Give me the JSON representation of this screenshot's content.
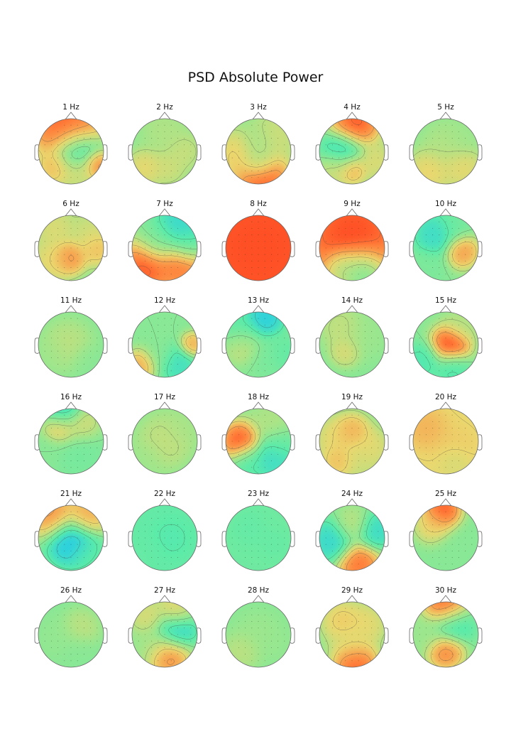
{
  "chart_data": {
    "type": "heatmap",
    "title": "PSD Absolute Power",
    "subtype": "topographic-scalp-maps",
    "colormap": "rainbow",
    "grid": false,
    "rows": 6,
    "cols": 5,
    "maps": [
      {
        "label": "1 Hz",
        "hotspots": [
          [
            -0.3,
            -0.7,
            0.95,
            0.5
          ],
          [
            0.2,
            -0.8,
            0.9,
            0.45
          ],
          [
            0.2,
            -0.1,
            0.15,
            0.4
          ],
          [
            0.8,
            0.4,
            0.9,
            0.25
          ],
          [
            -0.5,
            0.5,
            0.75,
            0.3
          ],
          [
            0.2,
            0.6,
            0.65,
            0.3
          ]
        ]
      },
      {
        "label": "2 Hz",
        "hotspots": [
          [
            -0.6,
            0.5,
            0.68,
            0.3
          ],
          [
            0.1,
            0.5,
            0.62,
            0.3
          ],
          [
            0.0,
            -0.6,
            0.55,
            0.4
          ],
          [
            0.6,
            0.0,
            0.6,
            0.3
          ]
        ]
      },
      {
        "label": "3 Hz",
        "hotspots": [
          [
            0.1,
            0.8,
            0.97,
            0.45
          ],
          [
            -0.7,
            0.1,
            0.7,
            0.4
          ],
          [
            0.5,
            -0.5,
            0.62,
            0.4
          ],
          [
            0.0,
            0.3,
            0.42,
            0.3
          ],
          [
            0.0,
            -0.3,
            0.5,
            0.3
          ]
        ]
      },
      {
        "label": "4 Hz",
        "hotspots": [
          [
            0.1,
            -0.85,
            0.97,
            0.4
          ],
          [
            -0.3,
            0.0,
            0.2,
            0.35
          ],
          [
            0.0,
            0.55,
            0.8,
            0.25
          ],
          [
            -0.5,
            0.5,
            0.65,
            0.3
          ],
          [
            0.7,
            0.3,
            0.65,
            0.3
          ]
        ]
      },
      {
        "label": "5 Hz",
        "hotspots": [
          [
            -0.5,
            0.6,
            0.7,
            0.35
          ],
          [
            0.5,
            0.5,
            0.68,
            0.35
          ],
          [
            0.0,
            -0.2,
            0.55,
            0.4
          ],
          [
            0.5,
            -0.4,
            0.5,
            0.3
          ]
        ]
      },
      {
        "label": "6 Hz",
        "hotspots": [
          [
            -0.05,
            0.3,
            0.85,
            0.28
          ],
          [
            0.8,
            0.0,
            0.75,
            0.3
          ],
          [
            -0.5,
            -0.6,
            0.65,
            0.35
          ],
          [
            0.6,
            -0.5,
            0.62,
            0.35
          ],
          [
            -0.6,
            0.4,
            0.68,
            0.35
          ]
        ]
      },
      {
        "label": "7 Hz",
        "hotspots": [
          [
            -0.6,
            0.6,
            0.97,
            0.45
          ],
          [
            0.5,
            0.6,
            0.9,
            0.4
          ],
          [
            0.5,
            -0.7,
            0.2,
            0.4
          ],
          [
            -0.2,
            -0.2,
            0.4,
            0.35
          ],
          [
            0.7,
            -0.1,
            0.35,
            0.3
          ]
        ]
      },
      {
        "label": "8 Hz",
        "hotspots": [
          [
            0.0,
            0.0,
            1.0,
            3.0
          ]
        ]
      },
      {
        "label": "9 Hz",
        "hotspots": [
          [
            0.0,
            -0.4,
            1.0,
            1.0
          ],
          [
            0.3,
            0.75,
            0.25,
            0.4
          ],
          [
            -0.3,
            0.6,
            0.45,
            0.3
          ]
        ]
      },
      {
        "label": "10 Hz",
        "hotspots": [
          [
            -0.3,
            -0.4,
            0.22,
            0.35
          ],
          [
            0.5,
            0.1,
            0.82,
            0.28
          ],
          [
            -0.5,
            0.6,
            0.42,
            0.3
          ],
          [
            0.3,
            -0.7,
            0.4,
            0.3
          ]
        ]
      },
      {
        "label": "11 Hz",
        "hotspots": [
          [
            -0.1,
            0.0,
            0.58,
            0.4
          ],
          [
            0.5,
            0.5,
            0.45,
            0.3
          ],
          [
            -0.6,
            0.3,
            0.5,
            0.3
          ]
        ]
      },
      {
        "label": "12 Hz",
        "hotspots": [
          [
            -0.7,
            0.6,
            0.8,
            0.25
          ],
          [
            0.4,
            0.6,
            0.25,
            0.3
          ],
          [
            0.85,
            0.0,
            0.78,
            0.2
          ],
          [
            -0.2,
            0.3,
            0.45,
            0.3
          ]
        ]
      },
      {
        "label": "13 Hz",
        "hotspots": [
          [
            0.2,
            -0.8,
            0.15,
            0.3
          ],
          [
            -0.5,
            -0.3,
            0.3,
            0.35
          ],
          [
            -0.5,
            0.0,
            0.68,
            0.3
          ],
          [
            0.3,
            0.4,
            0.42,
            0.35
          ],
          [
            0.8,
            0.3,
            0.35,
            0.3
          ]
        ]
      },
      {
        "label": "14 Hz",
        "hotspots": [
          [
            -0.2,
            0.2,
            0.65,
            0.25
          ],
          [
            0.4,
            -0.3,
            0.5,
            0.4
          ],
          [
            -0.3,
            -0.5,
            0.6,
            0.35
          ]
        ]
      },
      {
        "label": "15 Hz",
        "hotspots": [
          [
            0.15,
            0.0,
            1.0,
            0.32
          ],
          [
            -0.7,
            0.5,
            0.3,
            0.3
          ],
          [
            0.2,
            0.7,
            0.3,
            0.3
          ],
          [
            0.5,
            -0.6,
            0.55,
            0.3
          ]
        ]
      },
      {
        "label": "16 Hz",
        "hotspots": [
          [
            -0.2,
            -0.85,
            0.2,
            0.3
          ],
          [
            -0.3,
            -0.4,
            0.75,
            0.28
          ],
          [
            0.3,
            -0.5,
            0.65,
            0.3
          ],
          [
            0.2,
            0.3,
            0.4,
            0.4
          ],
          [
            -0.7,
            0.4,
            0.45,
            0.3
          ]
        ]
      },
      {
        "label": "17 Hz",
        "hotspots": [
          [
            0.0,
            0.0,
            0.6,
            0.45
          ],
          [
            -0.5,
            0.5,
            0.5,
            0.3
          ],
          [
            0.5,
            -0.4,
            0.52,
            0.3
          ]
        ]
      },
      {
        "label": "18 Hz",
        "hotspots": [
          [
            -0.55,
            0.0,
            0.97,
            0.32
          ],
          [
            0.5,
            0.5,
            0.22,
            0.35
          ],
          [
            -0.3,
            0.6,
            0.32,
            0.3
          ],
          [
            0.4,
            -0.6,
            0.55,
            0.35
          ],
          [
            0.7,
            0.1,
            0.4,
            0.3
          ]
        ]
      },
      {
        "label": "19 Hz",
        "hotspots": [
          [
            0.0,
            -0.3,
            0.78,
            0.3
          ],
          [
            -0.5,
            -0.1,
            0.68,
            0.35
          ],
          [
            0.5,
            0.2,
            0.68,
            0.35
          ],
          [
            -0.4,
            0.6,
            0.75,
            0.3
          ],
          [
            0.3,
            0.6,
            0.6,
            0.35
          ]
        ]
      },
      {
        "label": "20 Hz",
        "hotspots": [
          [
            0.0,
            0.0,
            0.7,
            1.5
          ],
          [
            -0.6,
            -0.4,
            0.8,
            0.4
          ],
          [
            0.4,
            0.2,
            0.7,
            0.4
          ],
          [
            0.3,
            0.6,
            0.55,
            0.3
          ]
        ]
      },
      {
        "label": "21 Hz",
        "hotspots": [
          [
            -0.6,
            -0.7,
            0.85,
            0.4
          ],
          [
            0.5,
            -0.7,
            0.8,
            0.35
          ],
          [
            0.0,
            0.1,
            0.1,
            0.4
          ],
          [
            0.5,
            0.5,
            0.35,
            0.3
          ]
        ]
      },
      {
        "label": "22 Hz",
        "hotspots": [
          [
            0.0,
            0.0,
            0.35,
            1.5
          ],
          [
            0.2,
            0.0,
            0.3,
            0.35
          ],
          [
            -0.5,
            0.4,
            0.38,
            0.3
          ]
        ]
      },
      {
        "label": "23 Hz",
        "hotspots": [
          [
            0.0,
            0.0,
            0.38,
            1.5
          ],
          [
            -0.3,
            -0.3,
            0.35,
            0.35
          ],
          [
            0.5,
            0.2,
            0.36,
            0.3
          ]
        ]
      },
      {
        "label": "24 Hz",
        "hotspots": [
          [
            0.2,
            0.8,
            0.92,
            0.35
          ],
          [
            -0.6,
            0.1,
            0.2,
            0.35
          ],
          [
            0.7,
            -0.2,
            0.22,
            0.3
          ],
          [
            0.0,
            -0.4,
            0.58,
            0.3
          ]
        ]
      },
      {
        "label": "25 Hz",
        "hotspots": [
          [
            -0.1,
            -0.85,
            0.97,
            0.3
          ],
          [
            -0.4,
            -0.4,
            0.7,
            0.3
          ],
          [
            0.5,
            0.5,
            0.45,
            0.4
          ]
        ]
      },
      {
        "label": "26 Hz",
        "hotspots": [
          [
            0.3,
            -0.2,
            0.58,
            0.3
          ],
          [
            -0.4,
            0.1,
            0.48,
            0.35
          ],
          [
            0.2,
            0.5,
            0.45,
            0.3
          ]
        ]
      },
      {
        "label": "27 Hz",
        "hotspots": [
          [
            0.1,
            0.6,
            0.9,
            0.35
          ],
          [
            0.3,
            -0.1,
            0.15,
            0.35
          ],
          [
            -0.4,
            0.3,
            0.5,
            0.35
          ],
          [
            -0.5,
            -0.5,
            0.65,
            0.3
          ],
          [
            0.3,
            -0.7,
            0.7,
            0.3
          ]
        ]
      },
      {
        "label": "28 Hz",
        "hotspots": [
          [
            0.0,
            0.0,
            0.5,
            0.4
          ],
          [
            -0.5,
            0.5,
            0.58,
            0.3
          ],
          [
            0.6,
            0.3,
            0.48,
            0.3
          ]
        ]
      },
      {
        "label": "29 Hz",
        "hotspots": [
          [
            0.1,
            0.85,
            0.97,
            0.35
          ],
          [
            -0.3,
            -0.4,
            0.72,
            0.35
          ],
          [
            0.4,
            -0.3,
            0.68,
            0.35
          ],
          [
            0.0,
            0.3,
            0.62,
            0.35
          ]
        ]
      },
      {
        "label": "30 Hz",
        "hotspots": [
          [
            0.0,
            -0.85,
            0.97,
            0.35
          ],
          [
            0.0,
            0.5,
            0.88,
            0.3
          ],
          [
            0.2,
            -0.3,
            0.25,
            0.35
          ],
          [
            -0.6,
            0.0,
            0.5,
            0.3
          ]
        ]
      }
    ]
  }
}
